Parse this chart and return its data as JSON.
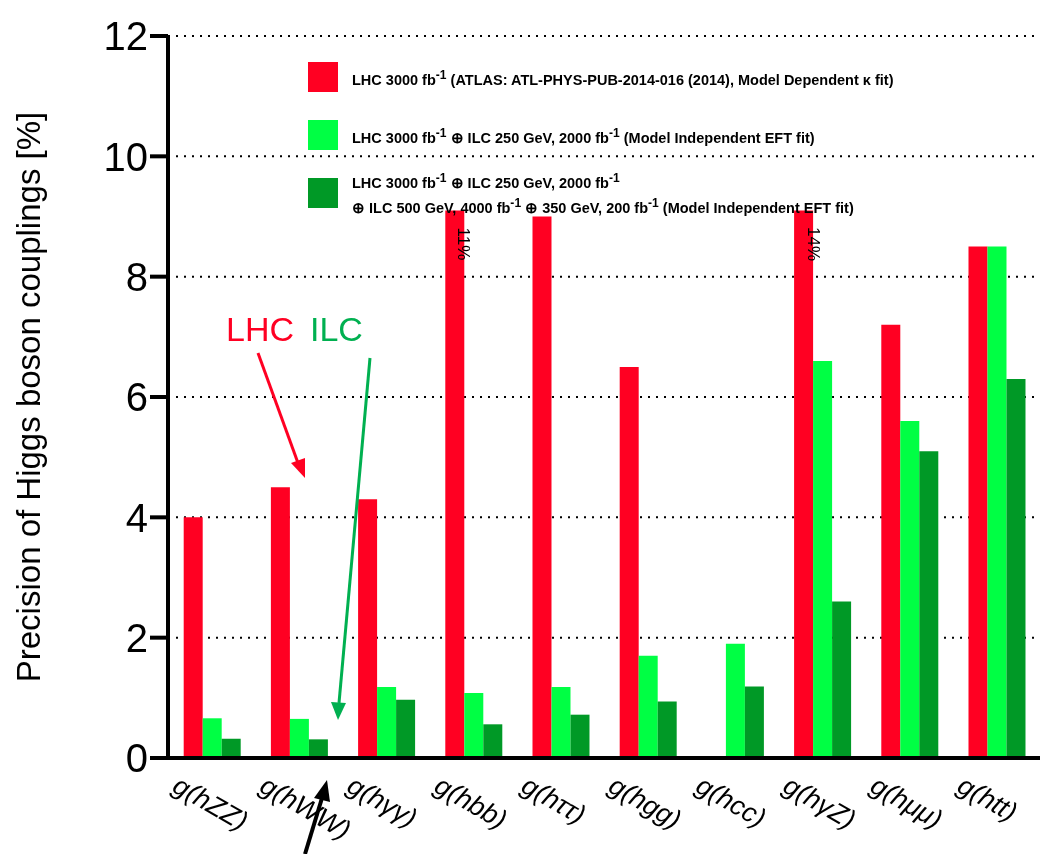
{
  "chart_data": {
    "type": "bar",
    "ylabel": "Precision of Higgs boson couplings [%]",
    "categories": [
      "g(hZZ)",
      "g(hWW)",
      "g(hγγ)",
      "g(hbb)",
      "g(hττ)",
      "g(hgg)",
      "g(hcc)",
      "g(hγZ)",
      "g(hμμ)",
      "g(htt)"
    ],
    "series": [
      {
        "name": "LHC 3000 fb$^{-1}$ (ATLAS: ATL-PHYS-PUB-2014-016 (2014), Model Dependent κ fit)",
        "color": "#ff0022",
        "values": [
          4.0,
          4.5,
          4.3,
          9.1,
          9.0,
          6.5,
          null,
          9.1,
          7.2,
          8.5
        ]
      },
      {
        "name": "LHC 3000 fb$^{-1}$ ⊕ ILC 250 GeV, 2000 fb$^{-1}$ (Model Independent EFT fit)",
        "color": "#00ff44",
        "values": [
          0.66,
          0.65,
          1.18,
          1.08,
          1.18,
          1.7,
          1.9,
          6.6,
          5.6,
          8.5
        ]
      },
      {
        "name": "LHC 3000 fb$^{-1}$ ⊕ ILC 250 GeV, 2000 fb$^{-1}$\n⊕ ILC 500 GeV, 4000 fb$^{-1}$ ⊕ 350 GeV, 200 fb$^{-1}$ (Model Independent EFT fit)",
        "color": "#009926",
        "values": [
          0.32,
          0.31,
          0.97,
          0.56,
          0.72,
          0.94,
          1.19,
          2.6,
          5.1,
          6.3
        ]
      }
    ],
    "ylim": [
      0,
      12
    ],
    "yticks": [
      0,
      2,
      4,
      6,
      8,
      10,
      12
    ],
    "grid": "y",
    "legend": "top",
    "annotations": [
      "LHC",
      "ILC",
      "11%",
      "14%"
    ]
  }
}
